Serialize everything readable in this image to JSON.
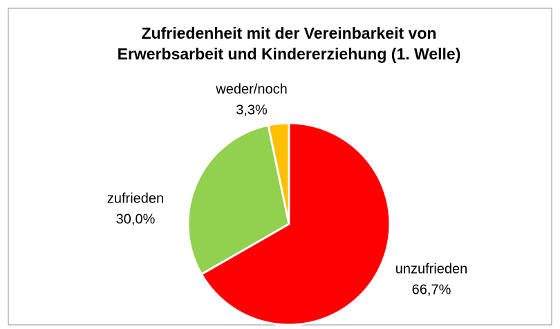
{
  "chart_data": {
    "type": "pie",
    "title": [
      "Zufriedenheit mit der Vereinbarkeit von",
      "Erwerbsarbeit und Kindererziehung (1. Welle)"
    ],
    "categories": [
      "unzufrieden",
      "zufrieden",
      "weder/noch"
    ],
    "values": [
      66.7,
      30.0,
      3.3
    ],
    "value_labels": [
      "66,7%",
      "30,0%",
      "3,3%"
    ],
    "colors": [
      "#ff0000",
      "#92d050",
      "#ffc000"
    ]
  }
}
